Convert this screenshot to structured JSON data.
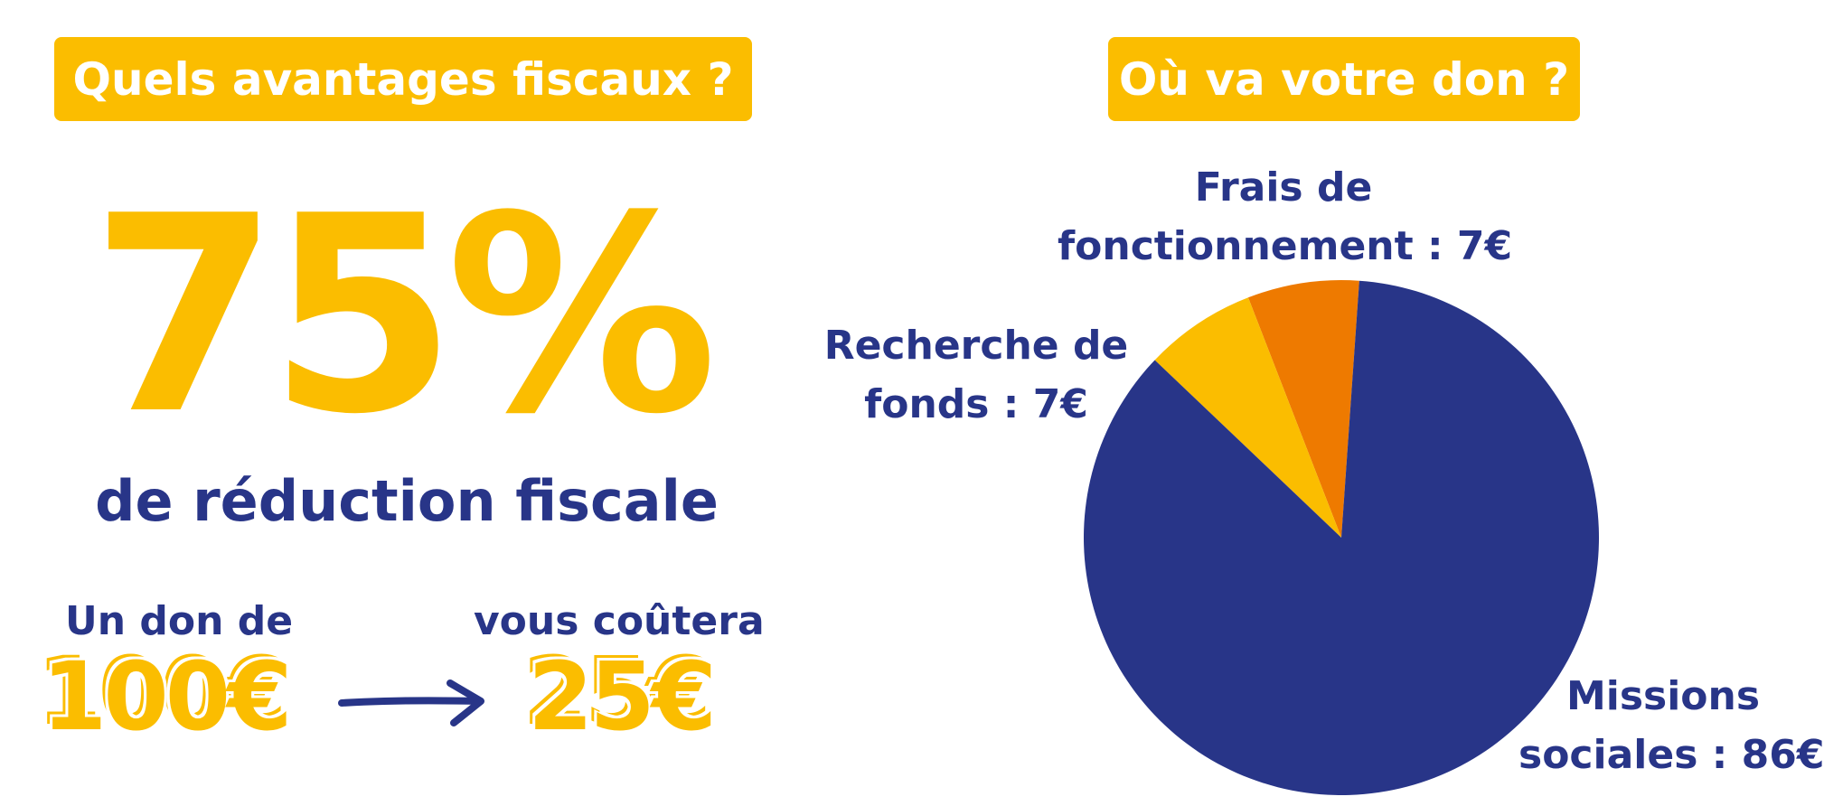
{
  "left": {
    "heading": "Quels avantages fiscaux ?",
    "big_percent": "75%",
    "subtitle": "de réduction fiscale",
    "don_label": "Un don de",
    "don_amount": "100€",
    "cout_label": "vous coûtera",
    "cout_amount": "25€"
  },
  "right": {
    "heading": "Où va votre don ?"
  },
  "colors": {
    "yellow": "#fbbd00",
    "navy": "#283588",
    "orange": "#ee7a00"
  },
  "chart_data": {
    "type": "pie",
    "unit": "€",
    "slices": [
      {
        "label_line1": "Missions",
        "label_line2": "sociales : 86€",
        "value": 86,
        "color": "#283588"
      },
      {
        "label_line1": "Recherche de",
        "label_line2": "fonds : 7€",
        "value": 7,
        "color": "#fbbd00"
      },
      {
        "label_line1": "Frais de",
        "label_line2": "fonctionnement : 7€",
        "value": 7,
        "color": "#ee7a00"
      }
    ]
  }
}
